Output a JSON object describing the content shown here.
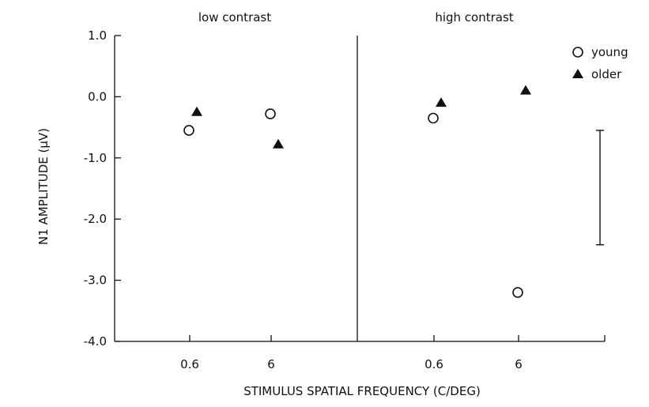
{
  "chart_data": {
    "type": "scatter",
    "xlabel": "STIMULUS SPATIAL FREQUENCY  (C/DEG)",
    "ylabel": "N1 AMPLITUDE  (μV)",
    "ylim": [
      -4.0,
      1.0
    ],
    "y_ticks": [
      "1.0",
      "0.0",
      "-1.0",
      "-2.0",
      "-3.0",
      "-4.0"
    ],
    "panels": [
      {
        "title": "low contrast",
        "categories": [
          "0.6",
          "6"
        ],
        "series": [
          {
            "name": "young",
            "marker": "open-circle",
            "values": [
              -0.55,
              -0.28
            ]
          },
          {
            "name": "older",
            "marker": "filled-triangle",
            "values": [
              -0.25,
              -0.78
            ]
          }
        ]
      },
      {
        "title": "high contrast",
        "categories": [
          "0.6",
          "6"
        ],
        "series": [
          {
            "name": "young",
            "marker": "open-circle",
            "values": [
              -0.35,
              -3.2
            ]
          },
          {
            "name": "older",
            "marker": "filled-triangle",
            "values": [
              -0.1,
              0.1
            ]
          }
        ]
      }
    ],
    "error_bar": {
      "low": -2.42,
      "high": -0.55
    },
    "legend": {
      "placement": "top-right",
      "entries": [
        "young",
        "older"
      ]
    },
    "grid": false
  }
}
